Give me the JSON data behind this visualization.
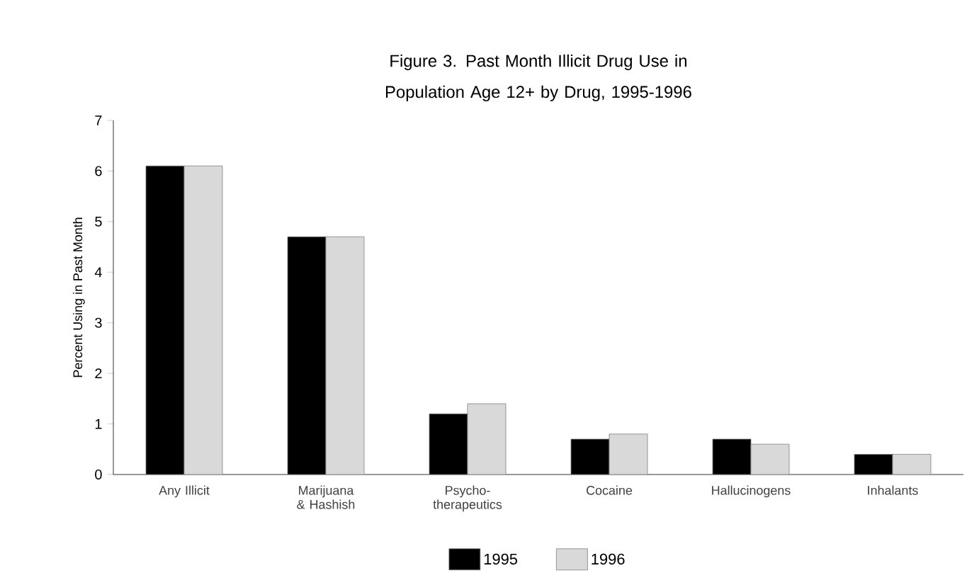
{
  "chart_data": {
    "type": "bar",
    "title": "Figure 3.  Past Month Illicit Drug Use in Population Age 12+ by Drug, 1995-1996",
    "ylabel": "Percent Using in Past Month",
    "categories": [
      "Any Illicit",
      "Marijuana & Hashish",
      "Psycho-therapeutics",
      "Cocaine",
      "Hallucinogens",
      "Inhalants"
    ],
    "series": [
      {
        "name": "1995",
        "color": "#000000",
        "values": [
          6.1,
          4.7,
          1.2,
          0.7,
          0.7,
          0.4
        ]
      },
      {
        "name": "1996",
        "color": "#d9d9d9",
        "values": [
          6.1,
          4.7,
          1.4,
          0.8,
          0.6,
          0.4
        ]
      }
    ],
    "ylim": [
      0,
      7
    ],
    "yticks": [
      0,
      1,
      2,
      3,
      4,
      5,
      6,
      7
    ],
    "legend": "bottom",
    "grid": false
  }
}
